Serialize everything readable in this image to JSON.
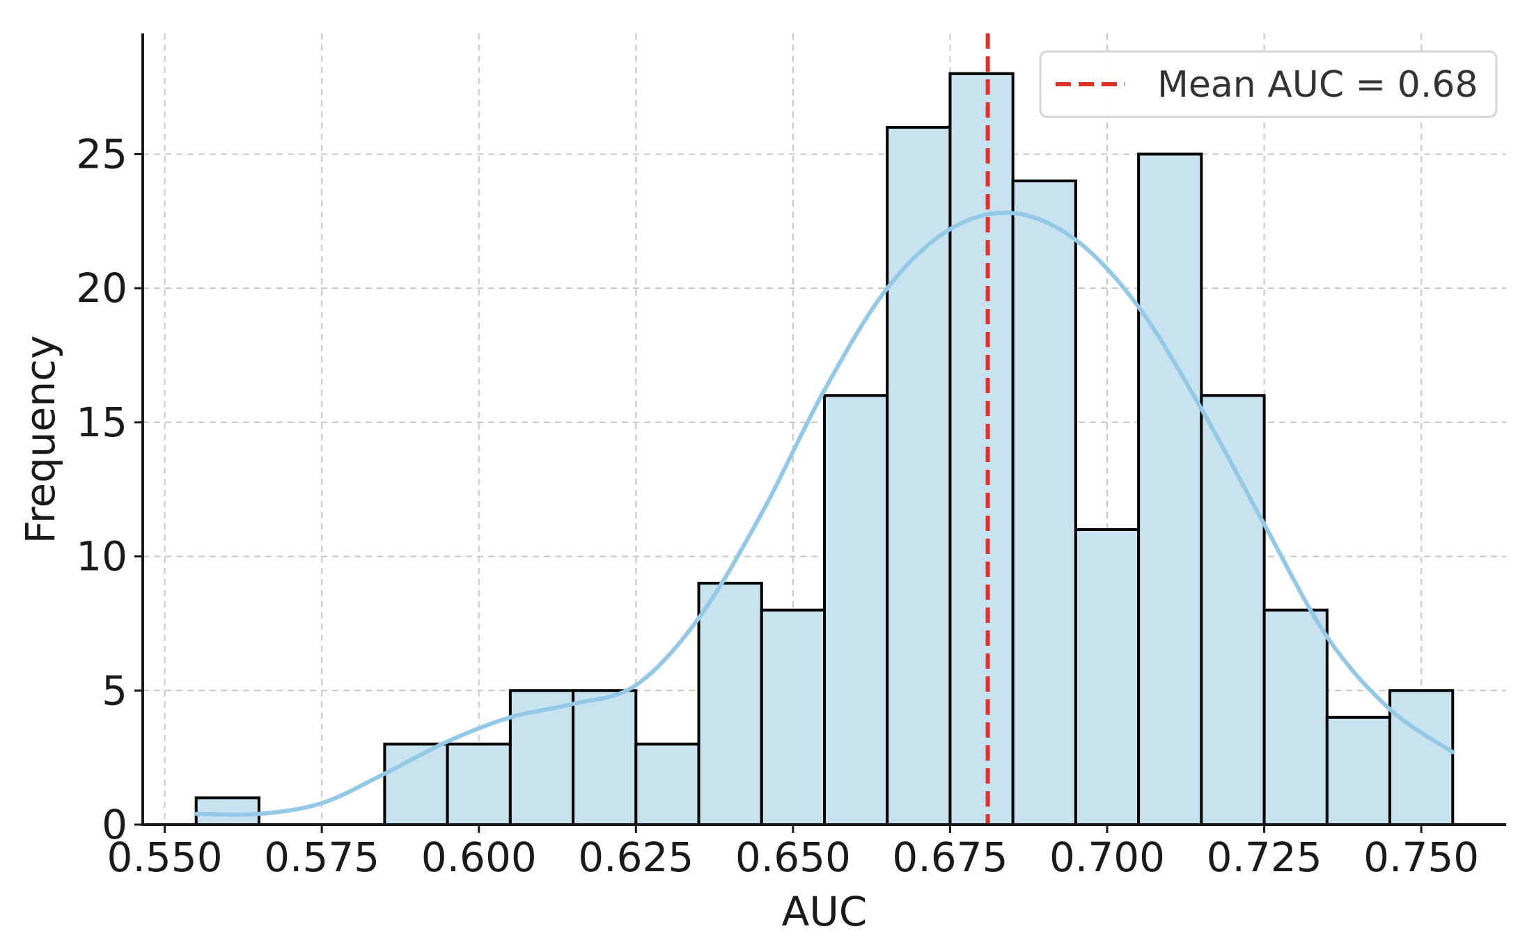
{
  "chart_data": {
    "type": "bar",
    "subtype": "histogram",
    "title": "",
    "xlabel": "AUC",
    "ylabel": "Frequency",
    "xlim": [
      0.5465,
      0.7635
    ],
    "ylim": [
      0,
      29.5
    ],
    "xticks": [
      0.55,
      0.575,
      0.6,
      0.625,
      0.65,
      0.675,
      0.7,
      0.725,
      0.75
    ],
    "xtick_labels": [
      "0.550",
      "0.575",
      "0.600",
      "0.625",
      "0.650",
      "0.675",
      "0.700",
      "0.725",
      "0.750"
    ],
    "yticks": [
      0,
      5,
      10,
      15,
      20,
      25
    ],
    "ytick_labels": [
      "0",
      "5",
      "10",
      "15",
      "20",
      "25"
    ],
    "grid": true,
    "bin_edges": [
      0.555,
      0.565,
      0.575,
      0.585,
      0.595,
      0.605,
      0.615,
      0.625,
      0.635,
      0.645,
      0.655,
      0.665,
      0.675,
      0.685,
      0.695,
      0.705,
      0.715,
      0.725,
      0.735,
      0.745,
      0.755
    ],
    "counts": [
      1,
      0,
      0,
      3,
      3,
      5,
      5,
      3,
      9,
      8,
      16,
      26,
      28,
      24,
      11,
      25,
      16,
      8,
      4,
      5
    ],
    "kde": {
      "x": [
        0.555,
        0.565,
        0.575,
        0.585,
        0.595,
        0.605,
        0.615,
        0.625,
        0.635,
        0.645,
        0.655,
        0.665,
        0.675,
        0.685,
        0.695,
        0.705,
        0.715,
        0.725,
        0.735,
        0.745,
        0.755
      ],
      "y": [
        0.4,
        0.4,
        0.8,
        1.9,
        3.1,
        4.0,
        4.5,
        5.2,
        7.7,
        11.6,
        16.2,
        20.0,
        22.2,
        22.8,
        21.8,
        19.3,
        15.5,
        11.2,
        7.0,
        4.3,
        2.7
      ]
    },
    "mean_line": {
      "x": 0.681,
      "label": "Mean AUC = 0.68"
    },
    "legend": {
      "placement": "top-right",
      "entries": [
        "Mean AUC = 0.68"
      ]
    },
    "colors": {
      "bar_fill": "#c9e2ef",
      "bar_edge": "#000000",
      "kde_line": "#93c9e6",
      "mean_line": "#e0302a",
      "grid": "#c8c8c8",
      "axis": "#1a1a1a"
    }
  }
}
